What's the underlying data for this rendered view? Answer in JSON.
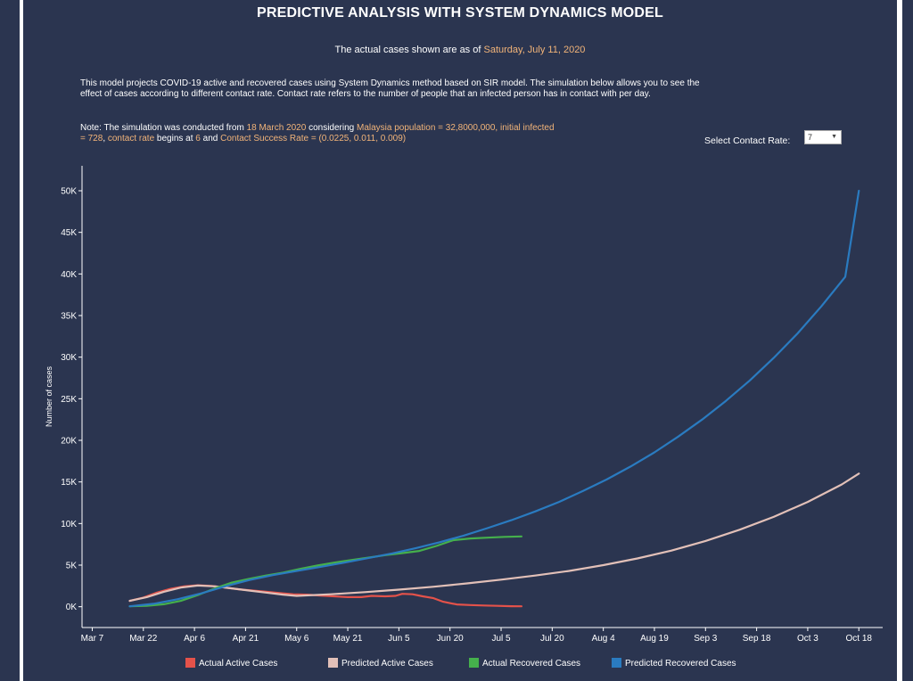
{
  "page": {
    "title": "PREDICTIVE ANALYSIS WITH SYSTEM DYNAMICS MODEL",
    "as_of_prefix": "The actual cases shown are as of ",
    "as_of_date": "Saturday, July 11, 2020",
    "description": "This model projects COVID-19 active and recovered cases using System Dynamics method based on SIR model. The simulation below allows you to see the effect of cases according to different contact rate. Contact rate refers to the number of people that an infected person has in contact with per day.",
    "note": {
      "t1": "Note: The simulation was conducted from ",
      "start_date": "18 March 2020",
      "t2": " considering ",
      "population": "Malaysia population = 32,8000,000,",
      "t3": " ",
      "initial_infected": "initial infected = 728",
      "t4": ", ",
      "contact_rate_begins": "contact rate",
      "t5": " begins at ",
      "begin_value": "6",
      "t6": " and ",
      "success_rate": "Contact Success Rate = (0.0225, 0.011, 0.009)"
    },
    "select": {
      "label": "Select Contact Rate:",
      "value": "7"
    },
    "colors": {
      "background": "#2b3550",
      "highlight": "#f2b479",
      "actual_active": "#e4524a",
      "predicted_active": "#e2c0b8",
      "actual_recovered": "#45b04c",
      "predicted_recovered": "#2a7bc0"
    }
  },
  "chart_data": {
    "type": "line",
    "title": "",
    "xlabel": "",
    "ylabel": "Number of cases",
    "x_range": [
      "2020-03-04",
      "2020-10-25"
    ],
    "ylim": [
      -2500,
      53000
    ],
    "x_ticks": [
      {
        "date": "2020-03-07",
        "label": "Mar 7"
      },
      {
        "date": "2020-03-22",
        "label": "Mar 22"
      },
      {
        "date": "2020-04-06",
        "label": "Apr 6"
      },
      {
        "date": "2020-04-21",
        "label": "Apr 21"
      },
      {
        "date": "2020-05-06",
        "label": "May 6"
      },
      {
        "date": "2020-05-21",
        "label": "May 21"
      },
      {
        "date": "2020-06-05",
        "label": "Jun 5"
      },
      {
        "date": "2020-06-20",
        "label": "Jun 20"
      },
      {
        "date": "2020-07-05",
        "label": "Jul 5"
      },
      {
        "date": "2020-07-20",
        "label": "Jul 20"
      },
      {
        "date": "2020-08-04",
        "label": "Aug 4"
      },
      {
        "date": "2020-08-19",
        "label": "Aug 19"
      },
      {
        "date": "2020-09-03",
        "label": "Sep 3"
      },
      {
        "date": "2020-09-18",
        "label": "Sep 18"
      },
      {
        "date": "2020-10-03",
        "label": "Oct 3"
      },
      {
        "date": "2020-10-18",
        "label": "Oct 18"
      }
    ],
    "y_ticks": [
      {
        "value": 0,
        "label": "0K"
      },
      {
        "value": 5000,
        "label": "5K"
      },
      {
        "value": 10000,
        "label": "10K"
      },
      {
        "value": 15000,
        "label": "15K"
      },
      {
        "value": 20000,
        "label": "20K"
      },
      {
        "value": 25000,
        "label": "25K"
      },
      {
        "value": 30000,
        "label": "30K"
      },
      {
        "value": 35000,
        "label": "35K"
      },
      {
        "value": 40000,
        "label": "40K"
      },
      {
        "value": 45000,
        "label": "45K"
      },
      {
        "value": 50000,
        "label": "50K"
      }
    ],
    "legend_position": "bottom",
    "grid": false,
    "series": [
      {
        "name": "Actual Active Cases",
        "color": "#e4524a",
        "points": [
          [
            "2020-03-18",
            700
          ],
          [
            "2020-03-22",
            1100
          ],
          [
            "2020-03-26",
            1700
          ],
          [
            "2020-03-30",
            2150
          ],
          [
            "2020-04-03",
            2450
          ],
          [
            "2020-04-07",
            2580
          ],
          [
            "2020-04-11",
            2500
          ],
          [
            "2020-04-15",
            2300
          ],
          [
            "2020-04-19",
            2100
          ],
          [
            "2020-04-23",
            1950
          ],
          [
            "2020-04-27",
            1800
          ],
          [
            "2020-05-01",
            1650
          ],
          [
            "2020-05-05",
            1500
          ],
          [
            "2020-05-09",
            1450
          ],
          [
            "2020-05-13",
            1350
          ],
          [
            "2020-05-17",
            1250
          ],
          [
            "2020-05-21",
            1150
          ],
          [
            "2020-05-25",
            1150
          ],
          [
            "2020-05-28",
            1300
          ],
          [
            "2020-06-01",
            1250
          ],
          [
            "2020-06-04",
            1300
          ],
          [
            "2020-06-06",
            1550
          ],
          [
            "2020-06-09",
            1500
          ],
          [
            "2020-06-12",
            1250
          ],
          [
            "2020-06-15",
            1050
          ],
          [
            "2020-06-18",
            600
          ],
          [
            "2020-06-22",
            280
          ],
          [
            "2020-06-26",
            200
          ],
          [
            "2020-06-30",
            150
          ],
          [
            "2020-07-04",
            100
          ],
          [
            "2020-07-08",
            60
          ],
          [
            "2020-07-11",
            50
          ]
        ]
      },
      {
        "name": "Predicted Active Cases",
        "color": "#e2c0b8",
        "points": [
          [
            "2020-03-18",
            700
          ],
          [
            "2020-03-23",
            1150
          ],
          [
            "2020-03-28",
            1800
          ],
          [
            "2020-04-02",
            2300
          ],
          [
            "2020-04-07",
            2550
          ],
          [
            "2020-04-12",
            2450
          ],
          [
            "2020-04-17",
            2200
          ],
          [
            "2020-04-22",
            1950
          ],
          [
            "2020-04-27",
            1700
          ],
          [
            "2020-05-02",
            1450
          ],
          [
            "2020-05-06",
            1300
          ],
          [
            "2020-05-16",
            1500
          ],
          [
            "2020-05-26",
            1750
          ],
          [
            "2020-06-05",
            2050
          ],
          [
            "2020-06-15",
            2400
          ],
          [
            "2020-06-25",
            2800
          ],
          [
            "2020-07-05",
            3250
          ],
          [
            "2020-07-15",
            3750
          ],
          [
            "2020-07-25",
            4300
          ],
          [
            "2020-08-04",
            5000
          ],
          [
            "2020-08-14",
            5800
          ],
          [
            "2020-08-24",
            6750
          ],
          [
            "2020-09-03",
            7900
          ],
          [
            "2020-09-13",
            9250
          ],
          [
            "2020-09-23",
            10800
          ],
          [
            "2020-10-03",
            12600
          ],
          [
            "2020-10-13",
            14700
          ],
          [
            "2020-10-18",
            16000
          ]
        ]
      },
      {
        "name": "Actual Recovered Cases",
        "color": "#45b04c",
        "points": [
          [
            "2020-03-18",
            50
          ],
          [
            "2020-03-23",
            100
          ],
          [
            "2020-03-28",
            300
          ],
          [
            "2020-04-02",
            700
          ],
          [
            "2020-04-07",
            1400
          ],
          [
            "2020-04-12",
            2200
          ],
          [
            "2020-04-17",
            2900
          ],
          [
            "2020-04-22",
            3350
          ],
          [
            "2020-04-27",
            3750
          ],
          [
            "2020-05-02",
            4100
          ],
          [
            "2020-05-07",
            4550
          ],
          [
            "2020-05-12",
            4950
          ],
          [
            "2020-05-17",
            5300
          ],
          [
            "2020-05-22",
            5600
          ],
          [
            "2020-05-27",
            5900
          ],
          [
            "2020-06-01",
            6200
          ],
          [
            "2020-06-06",
            6450
          ],
          [
            "2020-06-11",
            6700
          ],
          [
            "2020-06-16",
            7300
          ],
          [
            "2020-06-21",
            8000
          ],
          [
            "2020-06-26",
            8200
          ],
          [
            "2020-07-01",
            8300
          ],
          [
            "2020-07-06",
            8400
          ],
          [
            "2020-07-11",
            8450
          ]
        ]
      },
      {
        "name": "Predicted Recovered Cases",
        "color": "#2a7bc0",
        "points": [
          [
            "2020-03-18",
            50
          ],
          [
            "2020-03-25",
            350
          ],
          [
            "2020-04-01",
            900
          ],
          [
            "2020-04-08",
            1600
          ],
          [
            "2020-04-15",
            2450
          ],
          [
            "2020-04-22",
            3200
          ],
          [
            "2020-04-29",
            3800
          ],
          [
            "2020-05-06",
            4300
          ],
          [
            "2020-05-13",
            4800
          ],
          [
            "2020-05-20",
            5300
          ],
          [
            "2020-05-27",
            5850
          ],
          [
            "2020-06-03",
            6400
          ],
          [
            "2020-06-10",
            7050
          ],
          [
            "2020-06-17",
            7750
          ],
          [
            "2020-06-24",
            8550
          ],
          [
            "2020-07-01",
            9450
          ],
          [
            "2020-07-08",
            10400
          ],
          [
            "2020-07-15",
            11450
          ],
          [
            "2020-07-22",
            12600
          ],
          [
            "2020-07-29",
            13900
          ],
          [
            "2020-08-05",
            15300
          ],
          [
            "2020-08-12",
            16850
          ],
          [
            "2020-08-19",
            18550
          ],
          [
            "2020-08-26",
            20450
          ],
          [
            "2020-09-02",
            22500
          ],
          [
            "2020-09-09",
            24750
          ],
          [
            "2020-09-16",
            27200
          ],
          [
            "2020-09-23",
            29900
          ],
          [
            "2020-09-30",
            32850
          ],
          [
            "2020-10-07",
            36100
          ],
          [
            "2020-10-14",
            39650
          ],
          [
            "2020-10-18",
            50000
          ]
        ]
      }
    ]
  }
}
